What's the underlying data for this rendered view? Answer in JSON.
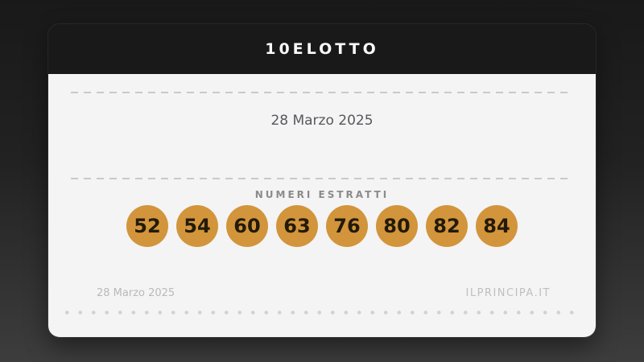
{
  "header": {
    "title": "10ELOTTO"
  },
  "main": {
    "date": "28 Marzo 2025",
    "section_label": "NUMERI ESTRATTI",
    "numbers": [
      "52",
      "54",
      "60",
      "63",
      "76",
      "80",
      "82",
      "84"
    ]
  },
  "footer": {
    "date": "28 Marzo 2025",
    "site": "ILPRINCIPA.IT"
  },
  "colors": {
    "page_bg_top": "#191919",
    "page_bg_bottom": "#3d3d3d",
    "header_bg": "#191919",
    "card_bg": "#f4f4f5",
    "ball": "#d2953b",
    "ball_text": "#231a09",
    "dash": "#c9c9c9",
    "main_date_text": "#57585b",
    "section_label_text": "#8b8b8b",
    "footer_text": "#b9b9b9"
  }
}
